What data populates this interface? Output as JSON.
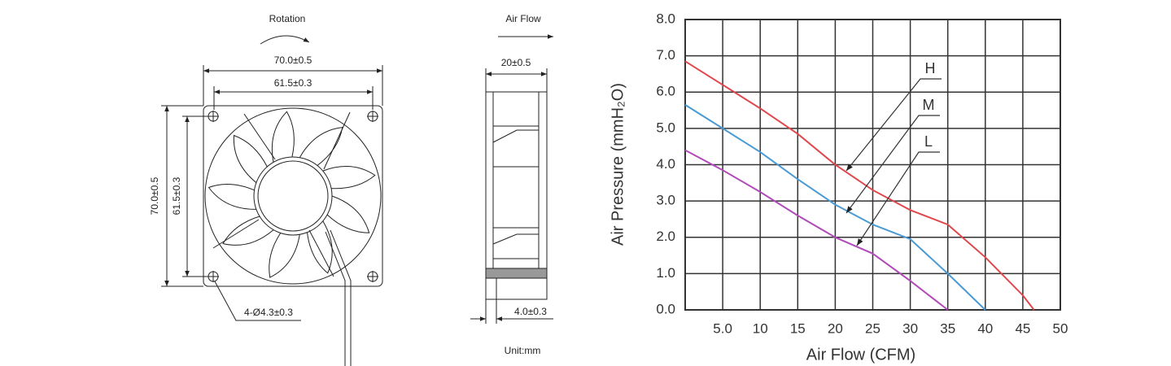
{
  "drawing": {
    "front": {
      "rotation": "Rotation",
      "width_outer": "70.0±0.5",
      "width_inner": "61.5±0.3",
      "height_outer": "70.0±0.5",
      "height_inner": "61.5±0.3",
      "holes": "4-Ø4.3±0.3"
    },
    "side": {
      "air_flow": "Air Flow",
      "depth": "20±0.5",
      "flange": "4.0±0.3",
      "unit": "Unit:mm"
    }
  },
  "chart_data": {
    "type": "line",
    "x_label": "Air Flow (CFM)",
    "y_label": "Air Pressure (mmH₂O)",
    "xlim": [
      0,
      50
    ],
    "ylim": [
      0,
      8
    ],
    "xticks": [
      {
        "value": 5,
        "label": "5.0"
      },
      10,
      15,
      20,
      25,
      30,
      35,
      40,
      45,
      50
    ],
    "yticks": [
      {
        "value": 0,
        "label": "0.0"
      },
      {
        "value": 1,
        "label": "1.0"
      },
      {
        "value": 2,
        "label": "2.0"
      },
      {
        "value": 3,
        "label": "3.0"
      },
      {
        "value": 4,
        "label": "4.0"
      },
      {
        "value": 5,
        "label": "5.0"
      },
      {
        "value": 6,
        "label": "6.0"
      },
      {
        "value": 7,
        "label": "7.0"
      },
      {
        "value": 8,
        "label": "8.0"
      }
    ],
    "grid": true,
    "series": [
      {
        "name": "H",
        "color": "#e0474c",
        "x": [
          0,
          5,
          10,
          15,
          20,
          25,
          30,
          35,
          40,
          45,
          46.5
        ],
        "values": [
          6.85,
          6.2,
          5.55,
          4.85,
          4.0,
          3.3,
          2.75,
          2.35,
          1.45,
          0.4,
          0
        ]
      },
      {
        "name": "M",
        "color": "#4a9ad4",
        "x": [
          0,
          5,
          10,
          15,
          20,
          25,
          30,
          35,
          40
        ],
        "values": [
          5.65,
          5.0,
          4.35,
          3.6,
          2.9,
          2.35,
          1.95,
          1.0,
          0
        ]
      },
      {
        "name": "L",
        "color": "#b04bb8",
        "x": [
          0,
          5,
          10,
          15,
          20,
          25,
          30,
          35
        ],
        "values": [
          4.4,
          3.85,
          3.25,
          2.6,
          2.0,
          1.55,
          0.8,
          0
        ]
      }
    ]
  }
}
